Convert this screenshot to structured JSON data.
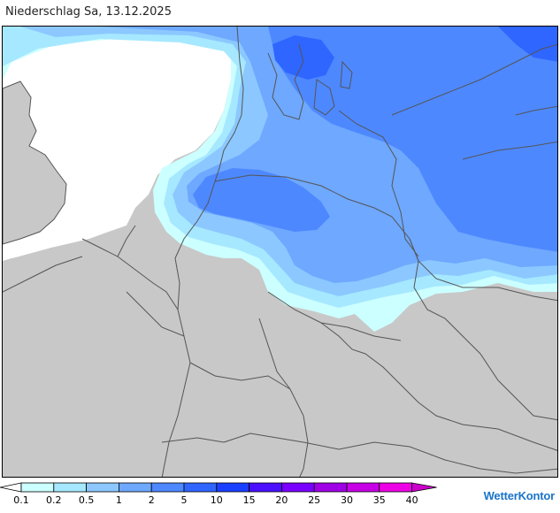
{
  "title": "Niederschlag Sa, 13.12.2025",
  "brand": {
    "part1": "Wetter",
    "part2": "Kontor"
  },
  "legend": {
    "ticks": [
      "0.1",
      "0.2",
      "0.5",
      "1",
      "2",
      "5",
      "10",
      "15",
      "20",
      "25",
      "30",
      "35",
      "40"
    ],
    "colors": [
      "#ffffff",
      "#ccffff",
      "#a6e8ff",
      "#8cc8ff",
      "#6ea8ff",
      "#4d88ff",
      "#2f66ff",
      "#1a40ff",
      "#4a10ff",
      "#7a00ff",
      "#a000e6",
      "#c800e6",
      "#ee00e6",
      "#cc00cc"
    ]
  },
  "map": {
    "land_color": "#c8c8c8",
    "sea_color": "#ffffff",
    "border_color": "#555555"
  }
}
